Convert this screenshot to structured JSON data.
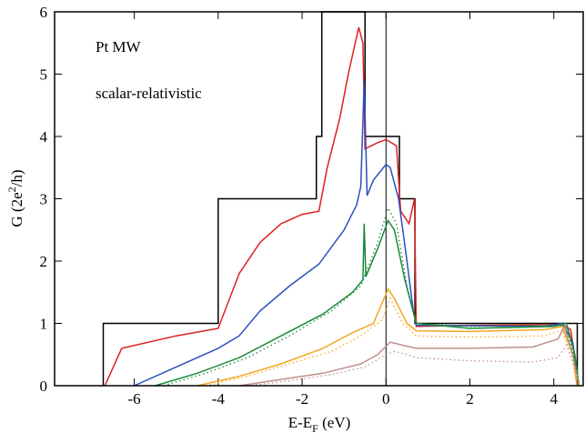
{
  "chart_data": {
    "type": "line",
    "annotations": [
      "Pt MW",
      "scalar-relativistic"
    ],
    "xlabel": [
      "E-E",
      "F",
      " (eV)"
    ],
    "ylabel": [
      "G (2e",
      "2",
      "/h)"
    ],
    "xlim": [
      -7.9,
      4.7
    ],
    "ylim": [
      0,
      6
    ],
    "xticks": [
      -6,
      -4,
      -2,
      0,
      2,
      4
    ],
    "yticks": [
      0,
      1,
      2,
      3,
      4,
      5,
      6
    ],
    "vline": 0,
    "series": [
      {
        "color": "#000000",
        "dash": false,
        "x": [
          -6.74,
          -6.74,
          -4,
          -4,
          -1.66,
          -1.66,
          -1.53,
          -1.53,
          -0.5,
          -0.5,
          0.32,
          0.32,
          0.69,
          0.69,
          4.56,
          4.56
        ],
        "values": [
          0,
          1,
          1,
          3,
          3,
          4,
          4,
          6,
          6,
          4,
          4,
          3,
          3,
          1,
          1,
          0
        ]
      },
      {
        "color": "#e0201e",
        "dash": false,
        "x": [
          -6.7,
          -6.3,
          -5,
          -4,
          -3.5,
          -3,
          -2.5,
          -2,
          -1.6,
          -1.4,
          -1.1,
          -0.9,
          -0.65,
          -0.55,
          -0.5,
          -0.2,
          0,
          0.25,
          0.35,
          0.55,
          0.68,
          0.72,
          2,
          4.2,
          4.4,
          4.6
        ],
        "values": [
          0,
          0.6,
          0.8,
          0.92,
          1.8,
          2.3,
          2.6,
          2.75,
          2.8,
          3.5,
          4.3,
          5.0,
          5.75,
          5.5,
          3.8,
          3.9,
          3.95,
          3.85,
          2.8,
          2.6,
          3.0,
          0.95,
          0.97,
          0.98,
          0.9,
          0
        ]
      },
      {
        "color": "#2a4fc0",
        "dash": false,
        "x": [
          -6.0,
          -5,
          -4,
          -3.5,
          -3,
          -2.3,
          -1.6,
          -1,
          -0.7,
          -0.6,
          -0.52,
          -0.45,
          -0.3,
          0,
          0.1,
          0.3,
          0.5,
          0.65,
          0.72,
          3.8,
          4.2,
          4.45,
          4.6
        ],
        "values": [
          0,
          0.3,
          0.6,
          0.8,
          1.2,
          1.6,
          1.95,
          2.5,
          2.9,
          3.2,
          4.9,
          3.05,
          3.3,
          3.55,
          3.5,
          3.0,
          2.0,
          1.2,
          0.97,
          0.95,
          1.0,
          0.7,
          0
        ]
      },
      {
        "color": "#1a8a3a",
        "dash": false,
        "x": [
          -5.5,
          -4.5,
          -3.5,
          -2.5,
          -1.5,
          -0.8,
          -0.55,
          -0.52,
          -0.48,
          -0.2,
          0.05,
          0.2,
          0.45,
          0.72,
          2,
          4.0,
          4.3,
          4.5,
          4.6
        ],
        "values": [
          0,
          0.2,
          0.45,
          0.8,
          1.15,
          1.5,
          1.7,
          2.6,
          1.75,
          2.2,
          2.65,
          2.5,
          1.7,
          1.0,
          0.92,
          0.95,
          1.0,
          0.5,
          0
        ]
      },
      {
        "color": "#f5a623",
        "dash": false,
        "x": [
          -4.5,
          -3.5,
          -2.5,
          -1.5,
          -0.8,
          -0.3,
          0.05,
          0.2,
          0.5,
          0.72,
          2,
          3.8,
          4.2,
          4.45,
          4.55
        ],
        "values": [
          0,
          0.15,
          0.35,
          0.6,
          0.85,
          1.0,
          1.55,
          1.4,
          1.0,
          0.88,
          0.87,
          0.9,
          0.95,
          0.5,
          0
        ]
      },
      {
        "color": "#c08f8f",
        "dash": false,
        "x": [
          -3.5,
          -2.5,
          -1.5,
          -0.6,
          -0.2,
          0.1,
          0.4,
          0.72,
          2,
          3.5,
          4.1,
          4.25,
          4.45,
          4.6
        ],
        "values": [
          0,
          0.1,
          0.2,
          0.35,
          0.5,
          0.7,
          0.65,
          0.6,
          0.6,
          0.62,
          0.75,
          0.95,
          0.5,
          0
        ]
      },
      {
        "color": "#1a8a3a",
        "dash": true,
        "x": [
          -5.3,
          -4.3,
          -3.3,
          -2.3,
          -1.3,
          -0.6,
          -0.2,
          0.05,
          0.25,
          0.5,
          0.72,
          2,
          4.0,
          4.3,
          4.5,
          4.6
        ],
        "values": [
          0,
          0.2,
          0.45,
          0.8,
          1.2,
          1.6,
          2.3,
          2.85,
          2.6,
          1.6,
          1.0,
          0.95,
          0.98,
          0.95,
          0.4,
          0
        ]
      },
      {
        "color": "#f5a623",
        "dash": true,
        "x": [
          -4.3,
          -3.3,
          -2.3,
          -1.3,
          -0.6,
          -0.1,
          0.1,
          0.4,
          0.72,
          2,
          3.8,
          4.2,
          4.45,
          4.55
        ],
        "values": [
          0,
          0.15,
          0.35,
          0.55,
          0.8,
          1.05,
          1.4,
          1.0,
          0.8,
          0.78,
          0.8,
          0.9,
          0.4,
          0
        ]
      },
      {
        "color": "#c08f8f",
        "dash": true,
        "x": [
          -3.3,
          -2.3,
          -1.3,
          -0.5,
          0,
          0.2,
          0.5,
          0.72,
          2,
          3.5,
          4.1,
          4.3,
          4.5,
          4.6
        ],
        "values": [
          0,
          0.08,
          0.18,
          0.3,
          0.5,
          0.55,
          0.5,
          0.45,
          0.4,
          0.38,
          0.45,
          0.65,
          0.3,
          0
        ]
      }
    ]
  }
}
